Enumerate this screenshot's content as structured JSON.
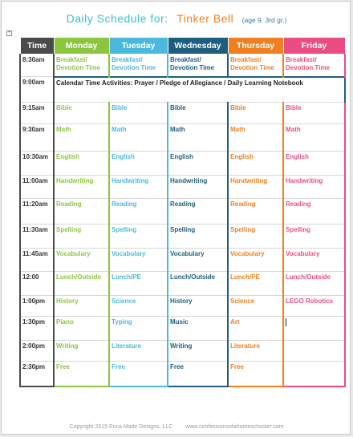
{
  "header": {
    "label": "Daily Schedule for:",
    "name": "Tinker Bell",
    "age": "(age 9, 3rd gr.)"
  },
  "colors": {
    "time": "#4b4b4b",
    "monday": "#8cc63f",
    "tuesday": "#4bb9dc",
    "wednesday": "#1d5e80",
    "thursday": "#f07f1f",
    "friday": "#ec4d80"
  },
  "columns": [
    "Time",
    "Monday",
    "Tuesday",
    "Wednesday",
    "Thursday",
    "Friday"
  ],
  "rows": [
    {
      "time": "8:30am",
      "cells": [
        "Breakfast/ Devotion Time",
        "Breakfast/ Devotion Time",
        "Breakfast/ Devotion Time",
        "Breakfast/ Devotion Time",
        "Breakfast/ Devotion Time"
      ]
    },
    {
      "time": "9:00am",
      "calendar": {
        "label": "Calendar Time Activities:",
        "text": " Prayer / Pledge of Allegiance / Daily Learning Notebook"
      }
    },
    {
      "time": "9:15am",
      "cells": [
        "Bible",
        "Bible",
        "Bible",
        "Bible",
        "Bible"
      ]
    },
    {
      "time": "9:30am",
      "cells": [
        "Math",
        "Math",
        "Math",
        "Math",
        "Math"
      ]
    },
    {
      "time": "10:30am",
      "cells": [
        "English",
        "English",
        "English",
        "English",
        "English"
      ]
    },
    {
      "time": "11:00am",
      "cells": [
        "Handwriting",
        "Handwriting",
        "Handwriting",
        "Handwriting",
        "Handwriting"
      ]
    },
    {
      "time": "11:20am",
      "cells": [
        "Reading",
        "Reading",
        "Reading",
        "Reading",
        "Reading"
      ]
    },
    {
      "time": "11:30am",
      "cells": [
        "Spelling",
        "Spelling",
        "Spelling",
        "Spelling",
        "Spelling"
      ]
    },
    {
      "time": "11:45am",
      "cells": [
        "Vocabulary",
        "Vocabulary",
        "Vocabulary",
        "Vocabulary",
        "Vocabulary"
      ]
    },
    {
      "time": "12:00",
      "cells": [
        "Lunch/Outside",
        "Lunch/PE",
        "Lunch/Outside",
        "Lunch/PE",
        "Lunch/Outside"
      ]
    },
    {
      "time": "1:00pm",
      "cells": [
        "History",
        "Science",
        "History",
        "Science",
        "LEGO Robotics"
      ]
    },
    {
      "time": "1:30pm",
      "cells": [
        "Piano",
        "Typing",
        "Music",
        "Art",
        ""
      ]
    },
    {
      "time": "2:00pm",
      "cells": [
        "Writing",
        "Literature",
        "Writing",
        "Literature",
        ""
      ]
    },
    {
      "time": "2:30pm",
      "cells": [
        "Free",
        "Free",
        "Free",
        "Free",
        ""
      ]
    }
  ],
  "footer": {
    "copyright": "Copyright 2015 Erica Made Designs, LLC",
    "site": "www.confessionsofahomeschooler.com"
  }
}
